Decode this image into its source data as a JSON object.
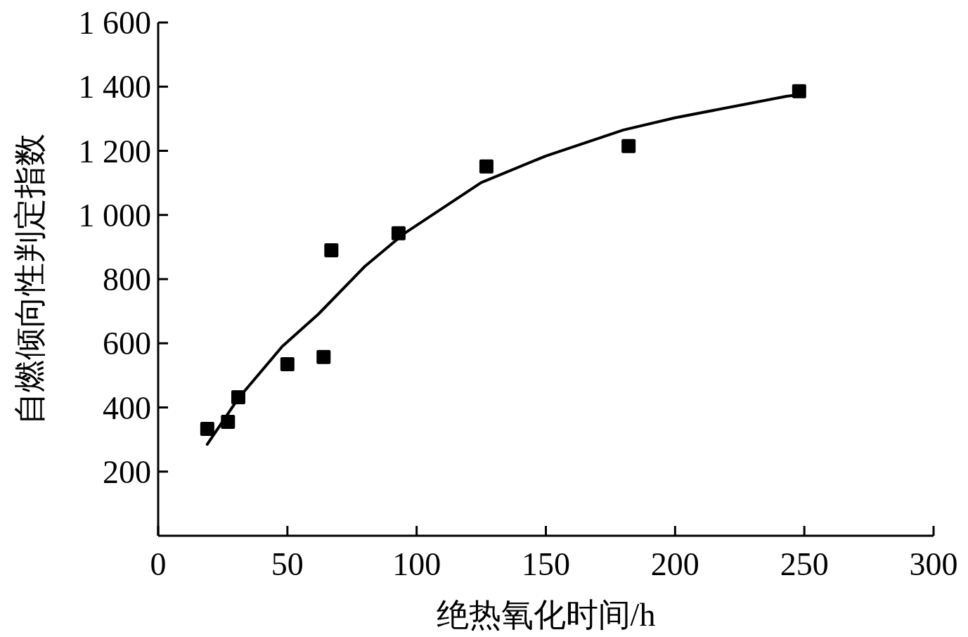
{
  "chart_data": {
    "type": "scatter",
    "xlabel": "绝热氧化时间/h",
    "ylabel": "自燃倾向性判定指数",
    "xlim": [
      0,
      300
    ],
    "xticks": [
      0,
      50,
      100,
      150,
      200,
      250,
      300
    ],
    "ylim": [
      0,
      1600
    ],
    "yticks": [
      200,
      400,
      600,
      800,
      {
        "value": 1000,
        "label": "1 000"
      },
      {
        "value": 1200,
        "label": "1 200"
      },
      {
        "value": 1400,
        "label": "1 400"
      },
      {
        "value": 1600,
        "label": "1 600"
      }
    ],
    "series": [
      {
        "type": "scatter",
        "color": "#000000",
        "marker": "square",
        "x": [
          19,
          27,
          31,
          50,
          64,
          67,
          93,
          127,
          182,
          248
        ],
        "values": [
          333,
          355,
          432,
          535,
          557,
          890,
          943,
          1151,
          1215,
          1386
        ]
      },
      {
        "type": "line",
        "color": "#000000",
        "marker": "none",
        "line_style": "solid",
        "x": [
          19,
          31,
          48,
          62,
          80,
          95,
          125,
          150,
          180,
          200,
          243,
          248
        ],
        "values": [
          285,
          428,
          590,
          691,
          840,
          941,
          1101,
          1184,
          1265,
          1303,
          1370,
          1375
        ]
      }
    ]
  }
}
